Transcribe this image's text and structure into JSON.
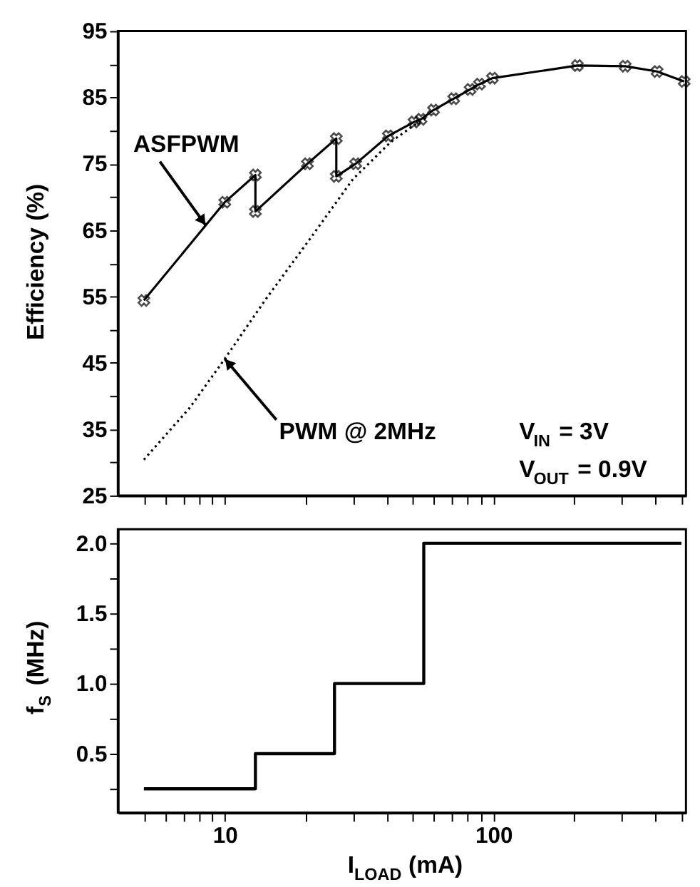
{
  "chart_data": [
    {
      "type": "line",
      "ylabel": "Efficiency (%)",
      "xlim": [
        4,
        520
      ],
      "ylim": [
        25,
        95
      ],
      "log": "x",
      "grid": false,
      "legend": false,
      "tick_labels": "y",
      "xticks": [
        {
          "value": 5,
          "label": null
        },
        {
          "value": 6,
          "label": null
        },
        {
          "value": 7,
          "label": null
        },
        {
          "value": 8,
          "label": null
        },
        {
          "value": 9,
          "label": null
        },
        {
          "value": 10,
          "label": null
        },
        {
          "value": 20,
          "label": null
        },
        {
          "value": 30,
          "label": null
        },
        {
          "value": 40,
          "label": null
        },
        {
          "value": 50,
          "label": null
        },
        {
          "value": 60,
          "label": null
        },
        {
          "value": 70,
          "label": null
        },
        {
          "value": 80,
          "label": null
        },
        {
          "value": 90,
          "label": null
        },
        {
          "value": 100,
          "label": null
        },
        {
          "value": 200,
          "label": null
        },
        {
          "value": 300,
          "label": null
        },
        {
          "value": 400,
          "label": null
        },
        {
          "value": 500,
          "label": null
        }
      ],
      "yticks": [
        25,
        {
          "value": 30,
          "label": null
        },
        35,
        {
          "value": 40,
          "label": null
        },
        45,
        {
          "value": 50,
          "label": null
        },
        55,
        {
          "value": 60,
          "label": null
        },
        65,
        {
          "value": 70,
          "label": null
        },
        75,
        {
          "value": 80,
          "label": null
        },
        85,
        {
          "value": 90,
          "label": null
        },
        95
      ],
      "series": [
        {
          "color": "#000000",
          "marker": "cross",
          "line_style": "solid",
          "x": [
            5,
            10,
            13,
            13,
            20.3,
            26,
            26,
            30.7,
            40.6,
            50.6,
            53.7,
            59.8,
            71.1,
            81.8,
            88.7,
            99,
            205,
            309,
            406,
            512
          ],
          "values": [
            54.4,
            69.2,
            73.3,
            67.8,
            75.0,
            78.8,
            73.1,
            75.0,
            79.2,
            81.3,
            81.7,
            83.1,
            84.8,
            86.2,
            87.0,
            87.9,
            89.8,
            89.7,
            88.9,
            87.4
          ]
        },
        {
          "color": "#000000",
          "marker": "none",
          "line_style": "dotted",
          "x": [
            5,
            7.4,
            10,
            14.1,
            20.6,
            30,
            41.5,
            50.6,
            56
          ],
          "values": [
            30.4,
            38.2,
            45.6,
            54.4,
            63.5,
            72.7,
            78.3,
            80.8,
            81.9
          ]
        }
      ],
      "annotations": [
        {
          "text": "ASFPWM",
          "x": 8.5,
          "y": 65.7
        },
        {
          "text": "PWM @ 2MHz",
          "x": 10,
          "y": 45.6
        },
        "V$_{IN}$ = 3V",
        "V$_{OUT}$ = 0.9V"
      ]
    },
    {
      "type": "step",
      "xlabel": "I$_{LOAD}$ (mA)",
      "ylabel": "f$_{S}$ (MHz)",
      "xlim": [
        4,
        520
      ],
      "ylim": [
        0.08,
        2.1
      ],
      "log": "x",
      "grid": false,
      "legend": false,
      "xticks": [
        {
          "value": 5,
          "label": null
        },
        {
          "value": 6,
          "label": null
        },
        {
          "value": 7,
          "label": null
        },
        {
          "value": 8,
          "label": null
        },
        {
          "value": 9,
          "label": null
        },
        10,
        {
          "value": 20,
          "label": null
        },
        {
          "value": 30,
          "label": null
        },
        {
          "value": 40,
          "label": null
        },
        {
          "value": 50,
          "label": null
        },
        {
          "value": 60,
          "label": null
        },
        {
          "value": 70,
          "label": null
        },
        {
          "value": 80,
          "label": null
        },
        {
          "value": 90,
          "label": null
        },
        100,
        {
          "value": 200,
          "label": null
        },
        {
          "value": 300,
          "label": null
        },
        {
          "value": 400,
          "label": null
        },
        {
          "value": 500,
          "label": null
        }
      ],
      "yticks": [
        {
          "value": 0.25,
          "label": null
        },
        0.5,
        {
          "value": 0.75,
          "label": null
        },
        {
          "value": 1,
          "label": "1.0"
        },
        {
          "value": 1.25,
          "label": null
        },
        1.5,
        {
          "value": 1.75,
          "label": null
        },
        {
          "value": 2,
          "label": "2.0"
        }
      ],
      "series": [
        {
          "color": "#000000",
          "line_style": "solid",
          "x": [
            5,
            13,
            25.6,
            55,
            500
          ],
          "values": [
            0.25,
            0.5,
            1,
            2,
            2
          ]
        }
      ]
    }
  ]
}
